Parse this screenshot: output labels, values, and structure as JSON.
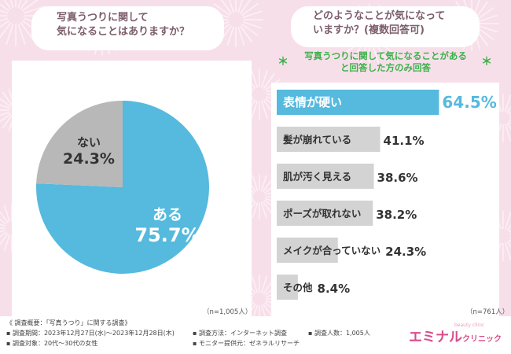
{
  "left": {
    "question": [
      "写真うつりに関して",
      "気になることはありますか？"
    ],
    "n_label": "（n=1,005人）"
  },
  "right": {
    "question": [
      "どのようなことが気になって",
      "いますか？(複数回答可)"
    ],
    "note": [
      "写真うつりに関して気になることがある",
      "と回答した方のみ回答"
    ],
    "note_star": "＊",
    "n_label": "（n=761人）"
  },
  "footer": {
    "title": "《 調査概要：「写真うつり」に関する調査》",
    "period": "▪ 調査期間：2023年12月27日(水)～2023年12月28日(木)",
    "target": "▪ 調査対象：20代～30代の女性",
    "method": "▪ 調査方法：インターネット調査",
    "provider": "▪ モニター提供元：ゼネラルリサーチ",
    "count": "▪ 調査人数：1,005人"
  },
  "brand": {
    "name_main": "エミナル",
    "name_sub": "クリニック",
    "tagline": "beauty clinic"
  },
  "colors": {
    "accent": "#56b9de",
    "gray": "#b8b8b8",
    "background": "#f7dfea",
    "green": "#3bb14a",
    "brand": "#d94d8a"
  },
  "chart_data": [
    {
      "type": "pie",
      "slices": [
        {
          "label": "ある",
          "value": 75.7,
          "display": "75.7%",
          "color": "#56b9de"
        },
        {
          "label": "ない",
          "value": 24.3,
          "display": "24.3%",
          "color": "#b8b8b8"
        }
      ]
    },
    {
      "type": "bar",
      "orientation": "horizontal",
      "categories": [
        "表情が硬い",
        "髪が崩れている",
        "肌が汚く見える",
        "ポーズが取れない",
        "メイクが合っていない",
        "その他"
      ],
      "values": [
        64.5,
        41.1,
        38.6,
        38.2,
        24.3,
        8.4
      ],
      "value_labels": [
        "64.5%",
        "41.1%",
        "38.6%",
        "38.2%",
        "24.3%",
        "8.4%"
      ],
      "highlight_index": 0,
      "xlim": [
        0,
        100
      ]
    }
  ]
}
